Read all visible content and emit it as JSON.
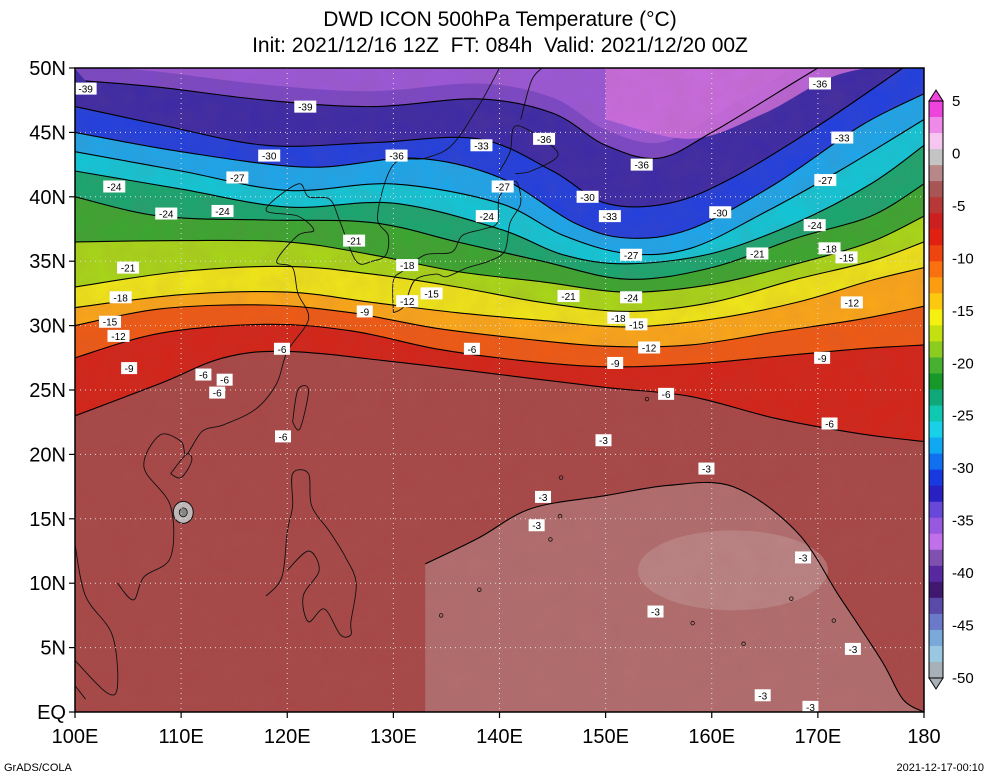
{
  "title": {
    "line1": "DWD ICON 500hPa Temperature (°C)",
    "line2": "Init: 2021/12/16 12Z  FT: 084h  Valid: 2021/12/20 00Z"
  },
  "footer": {
    "left": "GrADS/COLA",
    "right": "2021-12-17-00:10"
  },
  "axes": {
    "lon_range": [
      100,
      180
    ],
    "lat_range": [
      0,
      50
    ],
    "x_ticks": [
      {
        "value": 100,
        "label": "100E"
      },
      {
        "value": 110,
        "label": "110E"
      },
      {
        "value": 120,
        "label": "120E"
      },
      {
        "value": 130,
        "label": "130E"
      },
      {
        "value": 140,
        "label": "140E"
      },
      {
        "value": 150,
        "label": "150E"
      },
      {
        "value": 160,
        "label": "160E"
      },
      {
        "value": 170,
        "label": "170E"
      },
      {
        "value": 180,
        "label": "180"
      }
    ],
    "y_ticks": [
      {
        "value": 0,
        "label": "EQ"
      },
      {
        "value": 5,
        "label": "5N"
      },
      {
        "value": 10,
        "label": "10N"
      },
      {
        "value": 15,
        "label": "15N"
      },
      {
        "value": 20,
        "label": "20N"
      },
      {
        "value": 25,
        "label": "25N"
      },
      {
        "value": 30,
        "label": "30N"
      },
      {
        "value": 35,
        "label": "35N"
      },
      {
        "value": 40,
        "label": "40N"
      },
      {
        "value": 45,
        "label": "45N"
      },
      {
        "value": 50,
        "label": "50N"
      }
    ],
    "grid": "dotted"
  },
  "colorbar": {
    "labels": [
      "5",
      "0",
      "-5",
      "-10",
      "-15",
      "-20",
      "-25",
      "-30",
      "-35",
      "-40",
      "-45",
      "-50"
    ],
    "colors": [
      "#ee44dd",
      "#f08ae8",
      "#f6c6f0",
      "#c4c4c4",
      "#b88888",
      "#a85555",
      "#b83838",
      "#cc2020",
      "#e02010",
      "#ee4410",
      "#f87010",
      "#fc9c10",
      "#fcc810",
      "#f4f010",
      "#c4e010",
      "#8ccc20",
      "#48b030",
      "#189828",
      "#10a878",
      "#10c8b0",
      "#18d0e8",
      "#10a8f0",
      "#1070f0",
      "#1838e0",
      "#2820c0",
      "#6848d8",
      "#9858e0",
      "#c070e8",
      "#8050b0",
      "#5828a0",
      "#401870",
      "#5a4aa8",
      "#6a7ac8",
      "#7aa8d8",
      "#9ac8e0",
      "#a8b0b8"
    ]
  },
  "contours": [
    {
      "value": -39,
      "label": "-39",
      "points": [
        [
          101,
          49
        ],
        [
          108,
          48.5
        ],
        [
          118,
          47.5
        ],
        [
          128,
          47
        ],
        [
          138,
          47.6
        ],
        [
          145,
          46.5
        ],
        [
          150,
          44
        ],
        [
          155,
          43
        ],
        [
          160,
          45
        ],
        [
          168,
          49
        ],
        [
          170,
          50
        ]
      ]
    },
    {
      "value": -36,
      "label": "-36",
      "points": [
        [
          100,
          47
        ],
        [
          108,
          45.6
        ],
        [
          118,
          44
        ],
        [
          128,
          44.2
        ],
        [
          138,
          44.5
        ],
        [
          145,
          42
        ],
        [
          150,
          39.5
        ],
        [
          156,
          39.5
        ],
        [
          162,
          41.5
        ],
        [
          170,
          45.5
        ],
        [
          178,
          50
        ]
      ]
    },
    {
      "value": -33,
      "label": "-33",
      "points": [
        [
          100,
          45
        ],
        [
          110,
          43.5
        ],
        [
          122,
          42.3
        ],
        [
          132,
          43
        ],
        [
          140,
          41.5
        ],
        [
          147,
          38
        ],
        [
          152,
          36.8
        ],
        [
          158,
          37.5
        ],
        [
          166,
          41
        ],
        [
          174,
          45.5
        ],
        [
          180,
          48
        ]
      ]
    },
    {
      "value": -30,
      "label": "-30",
      "points": [
        [
          100,
          43.5
        ],
        [
          110,
          42
        ],
        [
          120,
          40.5
        ],
        [
          130,
          41
        ],
        [
          140,
          39.5
        ],
        [
          146,
          37
        ],
        [
          152,
          35.6
        ],
        [
          158,
          36
        ],
        [
          165,
          38.8
        ],
        [
          172,
          42
        ],
        [
          180,
          46
        ]
      ]
    },
    {
      "value": -27,
      "label": "-27",
      "points": [
        [
          100,
          42
        ],
        [
          110,
          40.6
        ],
        [
          120,
          39.2
        ],
        [
          130,
          39.5
        ],
        [
          140,
          37.5
        ],
        [
          146,
          35.5
        ],
        [
          152,
          34.8
        ],
        [
          160,
          35.6
        ],
        [
          168,
          38
        ],
        [
          175,
          41
        ],
        [
          180,
          44
        ]
      ]
    },
    {
      "value": -24,
      "label": "-24",
      "points": [
        [
          100,
          40
        ],
        [
          108,
          38.5
        ],
        [
          118,
          38.2
        ],
        [
          128,
          38
        ],
        [
          136,
          36.5
        ],
        [
          144,
          35
        ],
        [
          152,
          33.6
        ],
        [
          160,
          34.5
        ],
        [
          168,
          36.8
        ],
        [
          175,
          38.5
        ],
        [
          180,
          41
        ]
      ]
    },
    {
      "value": -21,
      "label": "-21",
      "points": [
        [
          100,
          36.5
        ],
        [
          110,
          36.6
        ],
        [
          120,
          36.5
        ],
        [
          128,
          35.5
        ],
        [
          136,
          34.2
        ],
        [
          144,
          33.4
        ],
        [
          152,
          32.6
        ],
        [
          160,
          33.2
        ],
        [
          168,
          34.8
        ],
        [
          175,
          36.5
        ],
        [
          180,
          38.5
        ]
      ]
    },
    {
      "value": -18,
      "label": "-18",
      "points": [
        [
          100,
          33
        ],
        [
          110,
          34.2
        ],
        [
          120,
          34.6
        ],
        [
          128,
          34
        ],
        [
          136,
          33
        ],
        [
          144,
          31.8
        ],
        [
          152,
          31.1
        ],
        [
          160,
          31.8
        ],
        [
          168,
          33.6
        ],
        [
          175,
          35
        ],
        [
          180,
          36.5
        ]
      ]
    },
    {
      "value": -15,
      "label": "-15",
      "points": [
        [
          100,
          31.4
        ],
        [
          110,
          32.4
        ],
        [
          120,
          32.6
        ],
        [
          128,
          31.8
        ],
        [
          136,
          31
        ],
        [
          144,
          30.4
        ],
        [
          152,
          29.9
        ],
        [
          160,
          30.5
        ],
        [
          168,
          31.8
        ],
        [
          175,
          33.5
        ],
        [
          180,
          34.5
        ]
      ]
    },
    {
      "value": -12,
      "label": "-12",
      "points": [
        [
          100,
          30
        ],
        [
          108,
          31.3
        ],
        [
          118,
          31.6
        ],
        [
          126,
          31
        ],
        [
          134,
          29.8
        ],
        [
          142,
          29
        ],
        [
          150,
          28.4
        ],
        [
          158,
          28.5
        ],
        [
          166,
          29.5
        ],
        [
          174,
          30.5
        ],
        [
          180,
          31.5
        ]
      ]
    },
    {
      "value": -9,
      "label": "-9",
      "points": [
        [
          100,
          27.5
        ],
        [
          108,
          29.4
        ],
        [
          118,
          30.1
        ],
        [
          126,
          29.6
        ],
        [
          134,
          28.2
        ],
        [
          142,
          27.3
        ],
        [
          150,
          26.8
        ],
        [
          158,
          27
        ],
        [
          166,
          27.6
        ],
        [
          174,
          28.2
        ],
        [
          180,
          28.5
        ]
      ]
    },
    {
      "value": -6,
      "label": "-6",
      "points": [
        [
          100,
          23
        ],
        [
          108,
          25.5
        ],
        [
          114,
          27.5
        ],
        [
          120,
          28
        ],
        [
          130,
          27.2
        ],
        [
          140,
          26.2
        ],
        [
          150,
          25.2
        ],
        [
          158,
          24.5
        ],
        [
          166,
          22.8
        ],
        [
          174,
          21.6
        ],
        [
          180,
          21
        ]
      ]
    },
    {
      "value": -3,
      "label": "-3",
      "points": [
        [
          133,
          11.5
        ],
        [
          138,
          13.5
        ],
        [
          143,
          15.8
        ],
        [
          150,
          16.8
        ],
        [
          156,
          17.6
        ],
        [
          162,
          17.5
        ],
        [
          168,
          14
        ],
        [
          172,
          9
        ],
        [
          176,
          4
        ],
        [
          178,
          1
        ],
        [
          180,
          0
        ]
      ]
    }
  ],
  "contour_labels": [
    {
      "label": "-39",
      "lon": 101,
      "lat": 48.4
    },
    {
      "label": "-39",
      "lon": 121.7,
      "lat": 47
    },
    {
      "label": "-36",
      "lon": 144.2,
      "lat": 44.5
    },
    {
      "label": "-36",
      "lon": 170.2,
      "lat": 48.8
    },
    {
      "label": "-36",
      "lon": 130.3,
      "lat": 43.2
    },
    {
      "label": "-36",
      "lon": 153.4,
      "lat": 42.5
    },
    {
      "label": "-33",
      "lon": 138.3,
      "lat": 44
    },
    {
      "label": "-33",
      "lon": 172.3,
      "lat": 44.6
    },
    {
      "label": "-33",
      "lon": 150.4,
      "lat": 38.5
    },
    {
      "label": "-30",
      "lon": 118.3,
      "lat": 43.2
    },
    {
      "label": "-30",
      "lon": 148.3,
      "lat": 40
    },
    {
      "label": "-30",
      "lon": 160.8,
      "lat": 38.8
    },
    {
      "label": "-27",
      "lon": 115.3,
      "lat": 41.5
    },
    {
      "label": "-27",
      "lon": 140.3,
      "lat": 40.8
    },
    {
      "label": "-27",
      "lon": 170.7,
      "lat": 41.3
    },
    {
      "label": "-27",
      "lon": 152.4,
      "lat": 35.5
    },
    {
      "label": "-24",
      "lon": 103.7,
      "lat": 40.8
    },
    {
      "label": "-24",
      "lon": 108.6,
      "lat": 38.7
    },
    {
      "label": "-24",
      "lon": 113.9,
      "lat": 38.9
    },
    {
      "label": "-24",
      "lon": 138.8,
      "lat": 38.5
    },
    {
      "label": "-24",
      "lon": 169.7,
      "lat": 37.8
    },
    {
      "label": "-24",
      "lon": 152.4,
      "lat": 32.2
    },
    {
      "label": "-21",
      "lon": 105,
      "lat": 34.5
    },
    {
      "label": "-21",
      "lon": 126.3,
      "lat": 36.6
    },
    {
      "label": "-21",
      "lon": 146.5,
      "lat": 32.3
    },
    {
      "label": "-21",
      "lon": 164.3,
      "lat": 35.6
    },
    {
      "label": "-18",
      "lon": 104.3,
      "lat": 32.2
    },
    {
      "label": "-18",
      "lon": 131.3,
      "lat": 34.7
    },
    {
      "label": "-18",
      "lon": 151.2,
      "lat": 30.6
    },
    {
      "label": "-18",
      "lon": 171.1,
      "lat": 36.0
    },
    {
      "label": "-15",
      "lon": 103.3,
      "lat": 30.3
    },
    {
      "label": "-15",
      "lon": 133.6,
      "lat": 32.5
    },
    {
      "label": "-15",
      "lon": 152.9,
      "lat": 30.1
    },
    {
      "label": "-15",
      "lon": 172.7,
      "lat": 35.3
    },
    {
      "label": "-12",
      "lon": 104.1,
      "lat": 29.2
    },
    {
      "label": "-12",
      "lon": 131.3,
      "lat": 31.9
    },
    {
      "label": "-12",
      "lon": 154.1,
      "lat": 28.3
    },
    {
      "label": "-12",
      "lon": 173.2,
      "lat": 31.8
    },
    {
      "label": "-9",
      "lon": 127.3,
      "lat": 31.1
    },
    {
      "label": "-9",
      "lon": 105.1,
      "lat": 26.7
    },
    {
      "label": "-9",
      "lon": 150.9,
      "lat": 27.1
    },
    {
      "label": "-9",
      "lon": 170.4,
      "lat": 27.5
    },
    {
      "label": "-6",
      "lon": 119.5,
      "lat": 28.2
    },
    {
      "label": "-6",
      "lon": 112.1,
      "lat": 26.2
    },
    {
      "label": "-6",
      "lon": 114.1,
      "lat": 25.8
    },
    {
      "label": "-6",
      "lon": 113.4,
      "lat": 24.8
    },
    {
      "label": "-6",
      "lon": 137.4,
      "lat": 28.2
    },
    {
      "label": "-6",
      "lon": 155.7,
      "lat": 24.7
    },
    {
      "label": "-6",
      "lon": 119.6,
      "lat": 21.4
    },
    {
      "label": "-6",
      "lon": 171.1,
      "lat": 22.4
    },
    {
      "label": "-3",
      "lon": 149.8,
      "lat": 21.1
    },
    {
      "label": "-3",
      "lon": 159.5,
      "lat": 18.9
    },
    {
      "label": "-3",
      "lon": 144.1,
      "lat": 16.7
    },
    {
      "label": "-3",
      "lon": 143.5,
      "lat": 14.5
    },
    {
      "label": "-3",
      "lon": 168.6,
      "lat": 12.0
    },
    {
      "label": "-3",
      "lon": 154.7,
      "lat": 7.8
    },
    {
      "label": "-3",
      "lon": 173.3,
      "lat": 4.9
    },
    {
      "label": "-3",
      "lon": 164.8,
      "lat": 1.3
    },
    {
      "label": "-3",
      "lon": 169.3,
      "lat": 0.4
    }
  ]
}
